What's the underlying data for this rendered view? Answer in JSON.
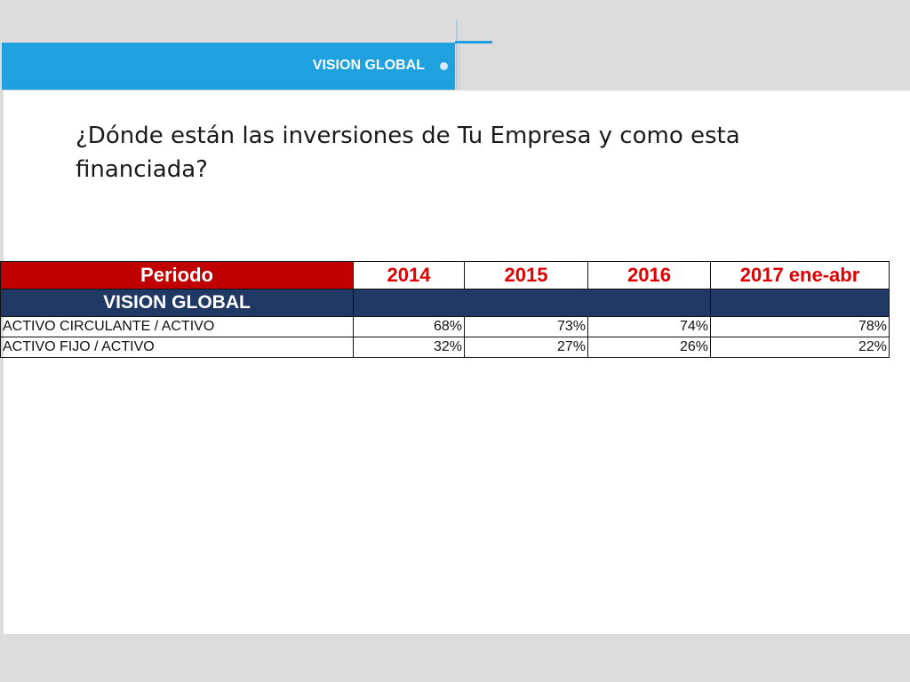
{
  "header": {
    "section_label": "VISION GLOBAL"
  },
  "question": "¿Dónde están las inversiones de Tu Empresa y como esta financiada?",
  "table": {
    "headers": [
      "Periodo",
      "2014",
      "2015",
      "2016",
      "2017 ene-abr"
    ],
    "section_row": "VISION GLOBAL",
    "rows": [
      {
        "label": "ACTIVO CIRCULANTE / ACTIVO",
        "values": [
          "68%",
          "73%",
          "74%",
          "78%"
        ]
      },
      {
        "label": "ACTIVO FIJO / ACTIVO",
        "values": [
          "32%",
          "27%",
          "26%",
          "22%"
        ]
      }
    ]
  },
  "colors": {
    "accent_blue": "#1fa0df",
    "header_red": "#c00000",
    "year_red": "#e00000",
    "navy": "#1f3864"
  }
}
